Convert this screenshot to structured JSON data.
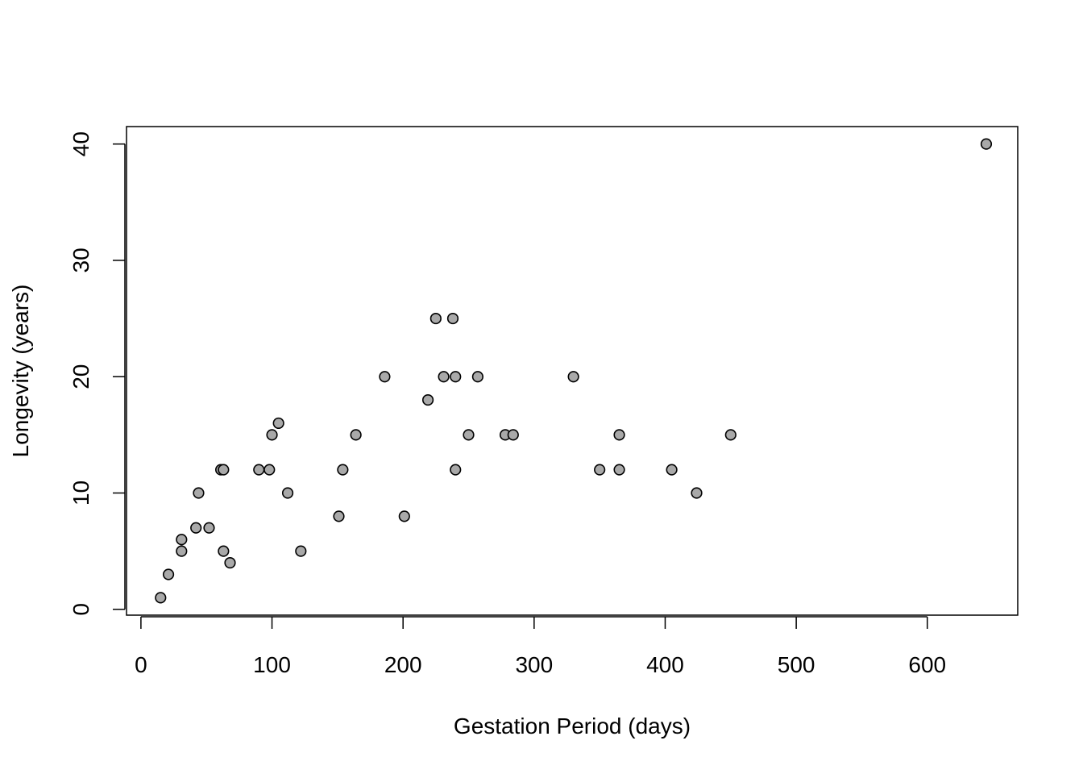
{
  "chart_data": {
    "type": "scatter",
    "title": "",
    "xlabel": "Gestation Period (days)",
    "ylabel": "Longevity (years)",
    "xlim": [
      -11,
      669
    ],
    "ylim": [
      -0.5,
      41.5
    ],
    "x_ticks": [
      0,
      100,
      200,
      300,
      400,
      500,
      600
    ],
    "y_ticks": [
      0,
      10,
      20,
      30,
      40
    ],
    "x_tick_labels": [
      "0",
      "100",
      "200",
      "300",
      "400",
      "500",
      "600"
    ],
    "y_tick_labels": [
      "0",
      "10",
      "20",
      "30",
      "40"
    ],
    "grid": false,
    "legend": "none",
    "marker_fill": "#a9a9a9",
    "marker_edge": "#000000",
    "points": [
      {
        "x": 15,
        "y": 1
      },
      {
        "x": 21,
        "y": 3
      },
      {
        "x": 31,
        "y": 5
      },
      {
        "x": 31,
        "y": 6
      },
      {
        "x": 42,
        "y": 7
      },
      {
        "x": 44,
        "y": 10
      },
      {
        "x": 52,
        "y": 7
      },
      {
        "x": 61,
        "y": 12
      },
      {
        "x": 63,
        "y": 12
      },
      {
        "x": 63,
        "y": 5
      },
      {
        "x": 68,
        "y": 4
      },
      {
        "x": 90,
        "y": 12
      },
      {
        "x": 98,
        "y": 12
      },
      {
        "x": 100,
        "y": 15
      },
      {
        "x": 105,
        "y": 16
      },
      {
        "x": 112,
        "y": 10
      },
      {
        "x": 122,
        "y": 5
      },
      {
        "x": 151,
        "y": 8
      },
      {
        "x": 154,
        "y": 12
      },
      {
        "x": 164,
        "y": 15
      },
      {
        "x": 186,
        "y": 20
      },
      {
        "x": 201,
        "y": 8
      },
      {
        "x": 219,
        "y": 18
      },
      {
        "x": 225,
        "y": 25
      },
      {
        "x": 231,
        "y": 20
      },
      {
        "x": 238,
        "y": 25
      },
      {
        "x": 240,
        "y": 20
      },
      {
        "x": 240,
        "y": 12
      },
      {
        "x": 250,
        "y": 15
      },
      {
        "x": 257,
        "y": 20
      },
      {
        "x": 278,
        "y": 15
      },
      {
        "x": 284,
        "y": 15
      },
      {
        "x": 330,
        "y": 20
      },
      {
        "x": 350,
        "y": 12
      },
      {
        "x": 365,
        "y": 15
      },
      {
        "x": 365,
        "y": 12
      },
      {
        "x": 405,
        "y": 12
      },
      {
        "x": 424,
        "y": 10
      },
      {
        "x": 450,
        "y": 15
      },
      {
        "x": 645,
        "y": 40
      }
    ]
  }
}
